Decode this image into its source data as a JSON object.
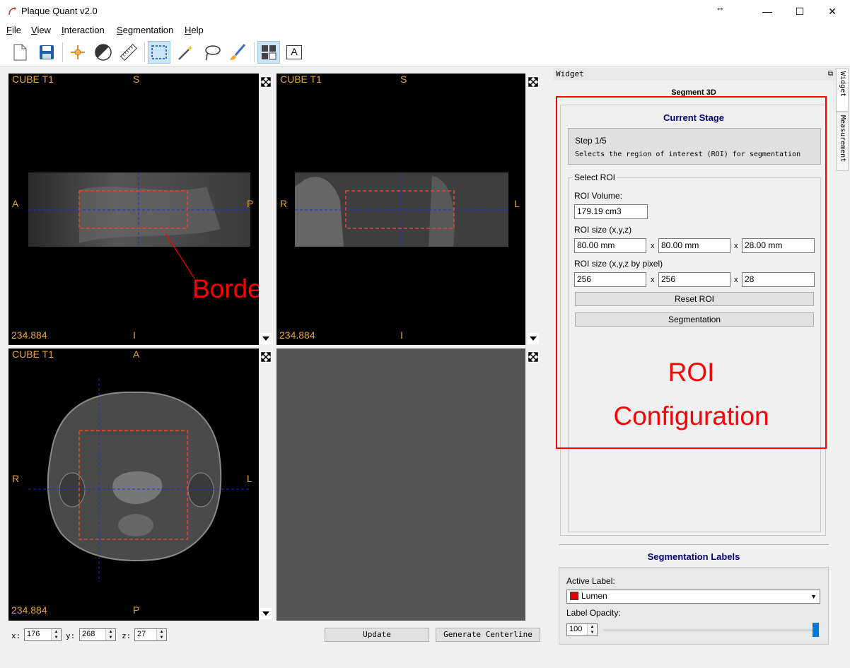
{
  "window": {
    "title": "Plaque Quant v2.0",
    "resize_glyph": "↔",
    "minimize": "—",
    "maximize": "☐",
    "close": "✕"
  },
  "menu": [
    "File",
    "View",
    "Interaction",
    "Segmentation",
    "Help"
  ],
  "toolbar_icons": [
    "new-document-icon",
    "save-icon",
    "crosshair-icon",
    "window-level-icon",
    "ruler-icon",
    "rectangle-select-icon",
    "magic-wand-icon",
    "lasso-icon",
    "brush-icon",
    "layout-grid-icon",
    "text-annotation-icon"
  ],
  "text_tool_glyph": "A",
  "viewports": {
    "top_left": {
      "series": "CUBE T1",
      "top": "S",
      "left": "A",
      "right": "P",
      "bottom": "I",
      "value": "234.884"
    },
    "top_right": {
      "series": "CUBE T1",
      "top": "S",
      "left": "R",
      "right": "L",
      "bottom": "I",
      "value": "234.884"
    },
    "bottom_left": {
      "series": "CUBE T1",
      "top": "A",
      "left": "R",
      "right": "L",
      "bottom": "P",
      "value": "234.884"
    }
  },
  "annotations": {
    "border": "Border",
    "roi_line1": "ROI",
    "roi_line2": "Configuration"
  },
  "coords": {
    "x_label": "x:",
    "x": "176",
    "y_label": "y:",
    "y": "268",
    "z_label": "z:",
    "z": "27"
  },
  "buttons": {
    "update": "Update",
    "generate_centerline": "Generate Centerline"
  },
  "panel": {
    "header": "Widget",
    "tabs": [
      "Widget",
      "Measurement"
    ],
    "title": "Segment 3D",
    "stage_title": "Current Stage",
    "step": "Step 1/5",
    "step_desc": "Selects the region of interest (ROI) for segmentation",
    "select_roi": "Select ROI",
    "roi_volume_label": "ROI Volume:",
    "roi_volume": "179.19 cm3",
    "roi_size_label": "ROI size (x,y,z)",
    "roi_size": [
      "80.00 mm",
      "80.00 mm",
      "28.00 mm"
    ],
    "roi_pixel_label": "ROI size (x,y,z by pixel)",
    "roi_pixel": [
      "256",
      "256",
      "28"
    ],
    "x_sep": "x",
    "reset_roi": "Reset ROI",
    "segmentation": "Segmentation"
  },
  "labels": {
    "title": "Segmentation Labels",
    "active_label_caption": "Active Label:",
    "active_label": "Lumen",
    "active_color": "#e00000",
    "opacity_caption": "Label Opacity:",
    "opacity": "100",
    "opacity_fraction": 1.0
  },
  "colors": {
    "accent_blue": "#000080",
    "annotation_red": "#ff0000",
    "overlay_orange": "#e6a532"
  }
}
